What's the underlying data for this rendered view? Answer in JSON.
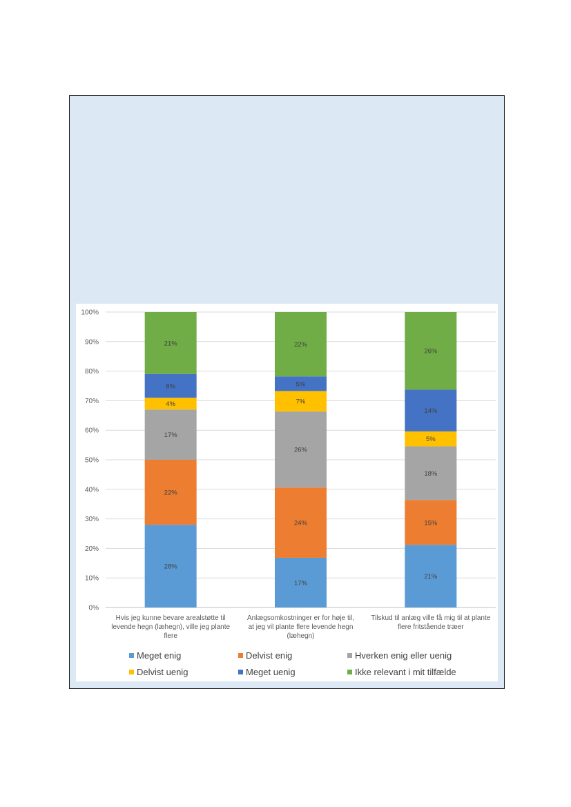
{
  "chart_data": {
    "type": "bar",
    "stacked": true,
    "percent_stacked": true,
    "categories": [
      "Hvis jeg kunne bevare arealstøtte til levende hegn (læhegn), ville jeg plante flere",
      "Anlægsomkostninger er for høje til, at jeg vil plante flere levende hegn (læhegn)",
      "Tilskud til anlæg ville få mig til at plante flere fritstående træer"
    ],
    "category_lines": [
      [
        "Hvis jeg kunne bevare arealstøtte til",
        "levende hegn (læhegn), ville jeg plante",
        "flere"
      ],
      [
        "Anlægsomkostninger er for høje til,",
        "at jeg vil plante flere levende hegn",
        "(læhegn)"
      ],
      [
        "Tilskud til anlæg ville få mig til at plante",
        "flere fritstående træer"
      ]
    ],
    "series": [
      {
        "name": "Meget enig",
        "color": "#5b9bd5",
        "values": [
          28,
          17,
          21
        ],
        "labels": [
          "28%",
          "17%",
          "21%"
        ]
      },
      {
        "name": "Delvist enig",
        "color": "#ed7d31",
        "values": [
          22,
          24,
          15
        ],
        "labels": [
          "22%",
          "24%",
          "15%"
        ]
      },
      {
        "name": "Hverken enig eller uenig",
        "color": "#a5a5a5",
        "values": [
          17,
          26,
          18
        ],
        "labels": [
          "17%",
          "26%",
          "18%"
        ]
      },
      {
        "name": "Delvist uenig",
        "color": "#ffc000",
        "values": [
          4,
          7,
          5
        ],
        "labels": [
          "4%",
          "7%",
          "5%"
        ]
      },
      {
        "name": "Meget uenig",
        "color": "#4472c4",
        "values": [
          8,
          5,
          14
        ],
        "labels": [
          "8%",
          "5%",
          "14%"
        ]
      },
      {
        "name": "Ikke relevant i mit tilfælde",
        "color": "#70ad47",
        "values": [
          21,
          22,
          26
        ],
        "labels": [
          "21%",
          "22%",
          "26%"
        ]
      }
    ],
    "yticks": [
      "0%",
      "10%",
      "20%",
      "30%",
      "40%",
      "50%",
      "60%",
      "70%",
      "80%",
      "90%",
      "100%"
    ],
    "ylim": [
      0,
      100
    ],
    "grid": true,
    "legend_position": "bottom"
  }
}
